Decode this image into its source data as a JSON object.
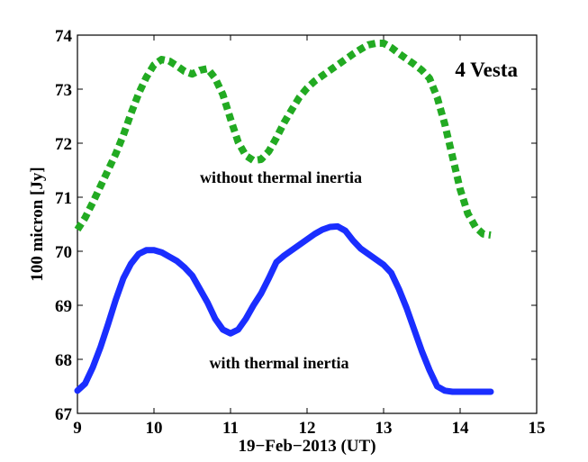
{
  "chart_data": {
    "type": "line",
    "title": "",
    "xlabel": "19−Feb−2013 (UT)",
    "ylabel": "100 micron [Jy]",
    "xlim": [
      9,
      15
    ],
    "ylim": [
      67,
      74
    ],
    "xticks": [
      9,
      10,
      11,
      12,
      13,
      14,
      15
    ],
    "yticks": [
      67,
      68,
      69,
      70,
      71,
      72,
      73,
      74
    ],
    "grid": false,
    "series": [
      {
        "name": "without thermal inertia",
        "style": "dotted",
        "color": "#22aa22",
        "x": [
          9.0,
          9.1,
          9.2,
          9.3,
          9.4,
          9.5,
          9.6,
          9.7,
          9.8,
          9.9,
          10.0,
          10.1,
          10.2,
          10.3,
          10.4,
          10.5,
          10.6,
          10.7,
          10.8,
          10.9,
          11.0,
          11.1,
          11.2,
          11.3,
          11.4,
          11.5,
          11.6,
          11.7,
          11.8,
          11.9,
          12.0,
          12.1,
          12.2,
          12.3,
          12.4,
          12.5,
          12.6,
          12.7,
          12.8,
          12.9,
          13.0,
          13.1,
          13.2,
          13.3,
          13.4,
          13.5,
          13.6,
          13.7,
          13.8,
          13.9,
          14.0,
          14.1,
          14.2,
          14.3,
          14.4
        ],
        "values": [
          70.4,
          70.62,
          70.9,
          71.2,
          71.5,
          71.8,
          72.15,
          72.55,
          72.92,
          73.22,
          73.45,
          73.55,
          73.52,
          73.43,
          73.33,
          73.28,
          73.35,
          73.38,
          73.2,
          72.9,
          72.45,
          72.02,
          71.77,
          71.68,
          71.7,
          71.85,
          72.1,
          72.38,
          72.62,
          72.85,
          73.02,
          73.15,
          73.25,
          73.35,
          73.45,
          73.55,
          73.65,
          73.74,
          73.82,
          73.85,
          73.85,
          73.77,
          73.66,
          73.56,
          73.46,
          73.35,
          73.2,
          72.85,
          72.35,
          71.75,
          71.15,
          70.7,
          70.45,
          70.32,
          70.3
        ]
      },
      {
        "name": "with thermal inertia",
        "style": "solid",
        "color": "#1a2eff",
        "x": [
          9.0,
          9.1,
          9.2,
          9.3,
          9.4,
          9.5,
          9.6,
          9.7,
          9.8,
          9.9,
          10.0,
          10.1,
          10.2,
          10.3,
          10.4,
          10.5,
          10.6,
          10.7,
          10.8,
          10.9,
          11.0,
          11.1,
          11.2,
          11.3,
          11.4,
          11.5,
          11.6,
          11.7,
          11.8,
          11.9,
          12.0,
          12.1,
          12.2,
          12.3,
          12.4,
          12.5,
          12.6,
          12.7,
          12.8,
          12.9,
          13.0,
          13.1,
          13.2,
          13.3,
          13.4,
          13.5,
          13.6,
          13.7,
          13.8,
          13.9,
          14.0,
          14.1,
          14.2,
          14.3,
          14.4
        ],
        "values": [
          67.42,
          67.55,
          67.85,
          68.22,
          68.65,
          69.1,
          69.5,
          69.77,
          69.95,
          70.02,
          70.02,
          69.98,
          69.9,
          69.82,
          69.7,
          69.55,
          69.3,
          69.05,
          68.75,
          68.55,
          68.48,
          68.55,
          68.75,
          69.0,
          69.22,
          69.5,
          69.8,
          69.92,
          70.02,
          70.12,
          70.22,
          70.32,
          70.4,
          70.45,
          70.46,
          70.38,
          70.2,
          70.05,
          69.95,
          69.85,
          69.75,
          69.6,
          69.3,
          68.95,
          68.55,
          68.15,
          67.8,
          67.5,
          67.42,
          67.4,
          67.4,
          67.4,
          67.4,
          67.4,
          67.4
        ]
      }
    ],
    "annotations": {
      "object": "4 Vesta",
      "upper_curve": "without thermal inertia",
      "lower_curve": "with thermal inertia"
    }
  }
}
